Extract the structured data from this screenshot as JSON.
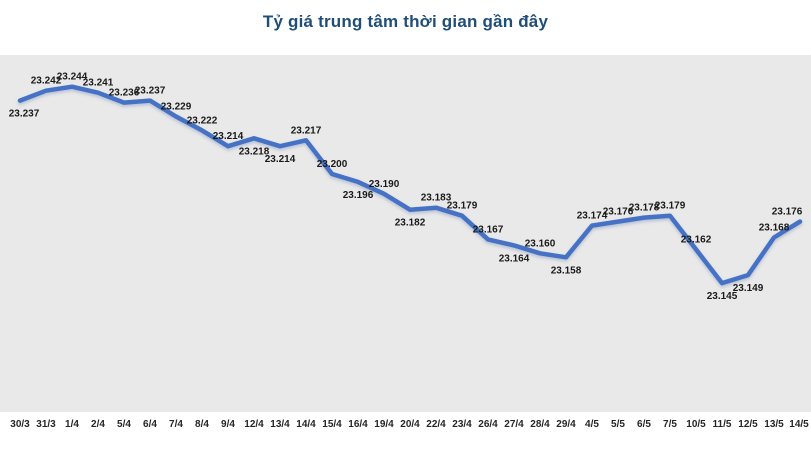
{
  "colors": {
    "title": "#1F4E79",
    "line": "#4472C4",
    "plot_bg": "#E9E9E9",
    "page_bg": "#FFFFFF",
    "label_text": "#1A1A1A",
    "axis_text": "#262626"
  },
  "chart_data": {
    "type": "line",
    "title": "Tỷ giá trung tâm thời gian gần đây",
    "xlabel": "",
    "ylabel": "",
    "categories": [
      "30/3",
      "31/3",
      "1/4",
      "2/4",
      "5/4",
      "6/4",
      "7/4",
      "8/4",
      "9/4",
      "12/4",
      "13/4",
      "14/4",
      "15/4",
      "16/4",
      "19/4",
      "20/4",
      "22/4",
      "23/4",
      "26/4",
      "27/4",
      "28/4",
      "29/4",
      "4/5",
      "5/5",
      "6/5",
      "7/5",
      "10/5",
      "11/5",
      "12/5",
      "13/5",
      "14/5"
    ],
    "values": [
      23.237,
      23.242,
      23.244,
      23.241,
      23.236,
      23.237,
      23.229,
      23.222,
      23.214,
      23.218,
      23.214,
      23.217,
      23.2,
      23.196,
      23.19,
      23.182,
      23.183,
      23.179,
      23.167,
      23.164,
      23.16,
      23.158,
      23.174,
      23.176,
      23.178,
      23.179,
      23.162,
      23.145,
      23.149,
      23.168,
      23.176
    ],
    "data_labels": [
      "23.237",
      "23.242",
      "23.244",
      "23.241",
      "23.236",
      "23.237",
      "23.229",
      "23.222",
      "23.214",
      "23.218",
      "23.214",
      "23.217",
      "23.200",
      "23.196",
      "23.190",
      "23.182",
      "23.183",
      "23.179",
      "23.167",
      "23.164",
      "23.160",
      "23.158",
      "23.174",
      "23.176",
      "23.178",
      "23.179",
      "23.162",
      "23.145",
      "23.149",
      "23.168",
      "23.176"
    ],
    "label_positions": [
      "below",
      "above",
      "above",
      "above",
      "above",
      "above",
      "above",
      "above",
      "above",
      "below",
      "below",
      "above",
      "above",
      "below",
      "above",
      "below",
      "above",
      "above",
      "above",
      "below",
      "above",
      "below",
      "above",
      "above",
      "above",
      "above",
      "above",
      "below",
      "below",
      "above",
      "above"
    ],
    "ylim": [
      23.08,
      23.26
    ],
    "grid": false,
    "legend": false
  }
}
